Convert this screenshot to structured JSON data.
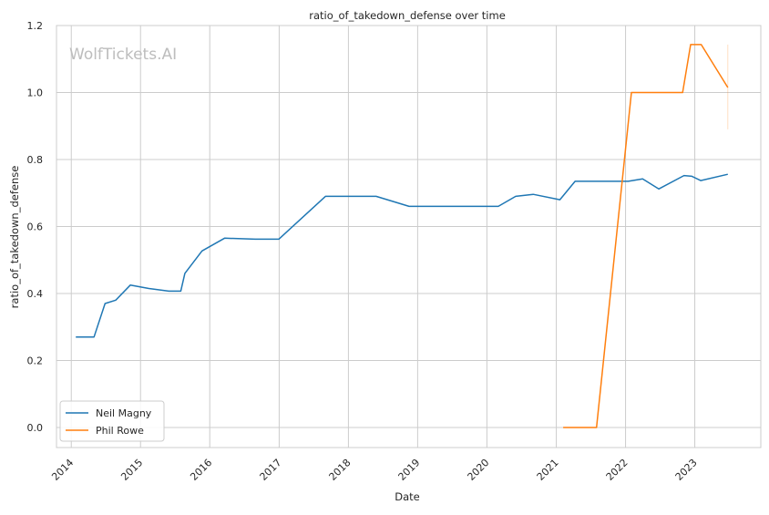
{
  "chart_data": {
    "type": "line",
    "title": "ratio_of_takedown_defense over time",
    "xlabel": "Date",
    "ylabel": "ratio_of_takedown_defense",
    "watermark": "WolfTickets.AI",
    "x_type": "date",
    "xlim": [
      "2013-10-15",
      "2023-12-15"
    ],
    "ylim": [
      -0.06,
      1.2
    ],
    "x_ticks": [
      "2014",
      "2015",
      "2016",
      "2017",
      "2018",
      "2019",
      "2020",
      "2021",
      "2022",
      "2023"
    ],
    "y_ticks": [
      "0.0",
      "0.2",
      "0.4",
      "0.6",
      "0.8",
      "1.0",
      "1.2"
    ],
    "grid": true,
    "legend_position": "bottom-left",
    "series": [
      {
        "name": "Neil Magny",
        "color": "#1f77b4",
        "points": [
          [
            "2014-01-25",
            0.27
          ],
          [
            "2014-05-01",
            0.27
          ],
          [
            "2014-06-28",
            0.37
          ],
          [
            "2014-08-23",
            0.38
          ],
          [
            "2014-11-08",
            0.425
          ],
          [
            "2015-02-14",
            0.415
          ],
          [
            "2015-05-30",
            0.407
          ],
          [
            "2015-08-01",
            0.407
          ],
          [
            "2015-08-23",
            0.46
          ],
          [
            "2015-11-21",
            0.527
          ],
          [
            "2016-03-19",
            0.565
          ],
          [
            "2016-08-27",
            0.562
          ],
          [
            "2016-12-30",
            0.562
          ],
          [
            "2017-09-02",
            0.69
          ],
          [
            "2018-05-27",
            0.69
          ],
          [
            "2018-11-17",
            0.66
          ],
          [
            "2020-03-01",
            0.66
          ],
          [
            "2020-06-01",
            0.69
          ],
          [
            "2020-09-01",
            0.696
          ],
          [
            "2021-01-20",
            0.68
          ],
          [
            "2021-04-10",
            0.735
          ],
          [
            "2022-01-15",
            0.735
          ],
          [
            "2022-04-01",
            0.742
          ],
          [
            "2022-06-25",
            0.712
          ],
          [
            "2022-11-05",
            0.752
          ],
          [
            "2022-12-17",
            0.75
          ],
          [
            "2023-02-01",
            0.737
          ],
          [
            "2023-06-24",
            0.756
          ]
        ]
      },
      {
        "name": "Phil Rowe",
        "color": "#ff7f0e",
        "points": [
          [
            "2021-02-06",
            0.0
          ],
          [
            "2021-08-01",
            0.0
          ],
          [
            "2022-02-01",
            1.0
          ],
          [
            "2022-10-29",
            1.0
          ],
          [
            "2022-12-10",
            1.143
          ],
          [
            "2023-02-04",
            1.143
          ],
          [
            "2023-06-24",
            1.015
          ]
        ]
      }
    ]
  }
}
